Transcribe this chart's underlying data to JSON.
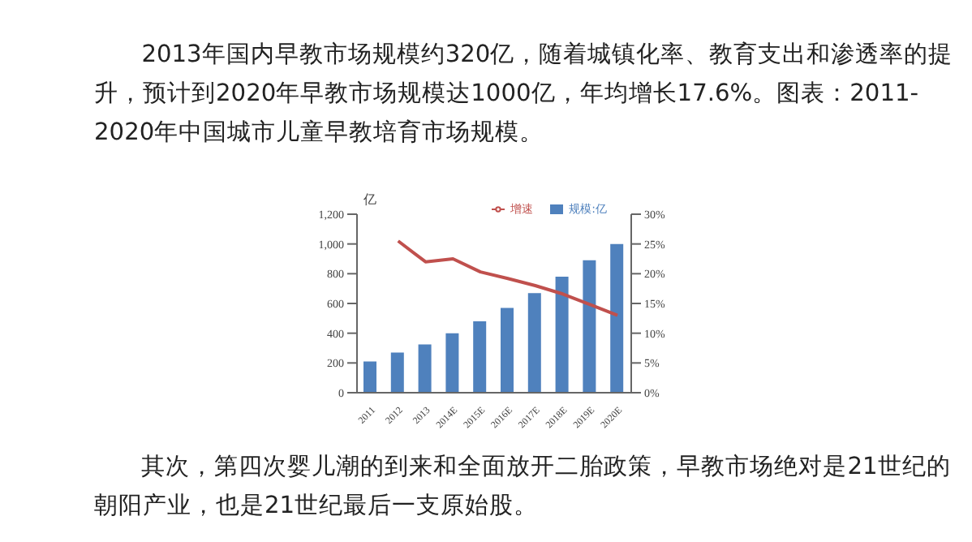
{
  "chart_data": {
    "type": "bar",
    "title": "2013年国内早教市场规模约320亿，随着城镇化率、教育支出和渗透率的提升，预计到2020年早教市场规模达1000亿，年均增长17.6%。图表：2011-2020年中国城市儿童早教培育市场规模。",
    "ylabel": "亿",
    "annotations": [
      "其次，第四次婴儿潮的到来和全面放开二胎政策，早教市场绝对是21世纪的朝阳产业，也是21世纪最后一支原始股。"
    ],
    "categories": [
      "2011",
      "2012",
      "2013",
      "2014E",
      "2015E",
      "2016E",
      "2017E",
      "2018E",
      "2019E",
      "2020E"
    ],
    "series": [
      {
        "name": "规模:亿",
        "color": "#4f81bd",
        "values": [
          210,
          270,
          325,
          400,
          480,
          570,
          670,
          780,
          890,
          1000
        ]
      },
      {
        "name": "增速",
        "type": "line",
        "axis": "y2",
        "color": "#c0504d",
        "values": [
          null,
          25.5,
          22,
          22.5,
          20.3,
          19.2,
          18,
          16.6,
          14.8,
          13
        ]
      }
    ],
    "ylim": [
      0,
      1200
    ],
    "yticks": [
      0,
      200,
      400,
      600,
      800,
      {
        "value": 1000,
        "label": "1,000"
      },
      {
        "value": 1200,
        "label": "1,200"
      }
    ],
    "y2lim": [
      0,
      30
    ],
    "y2ticks": [
      {
        "value": 0,
        "label": "0%"
      },
      {
        "value": 5,
        "label": "5%"
      },
      {
        "value": 10,
        "label": "10%"
      },
      {
        "value": 15,
        "label": "15%"
      },
      {
        "value": 20,
        "label": "20%"
      },
      {
        "value": 25,
        "label": "25%"
      },
      {
        "value": 30,
        "label": "30%"
      }
    ],
    "legend": "top right",
    "marker": "none",
    "grid": false
  }
}
